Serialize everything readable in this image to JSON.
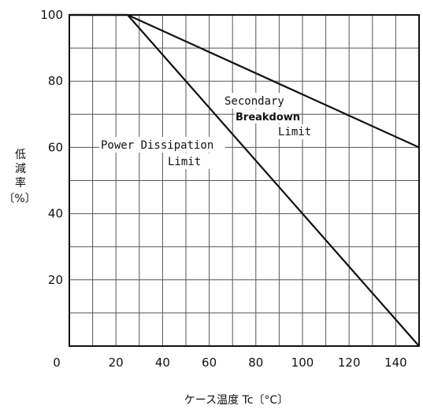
{
  "chart_data": {
    "type": "line",
    "xlabel": "ケース温度 Tc〔°C〕",
    "ylabel": [
      "低",
      "減",
      "率",
      "〔%〕"
    ],
    "xlim": [
      0,
      150
    ],
    "ylim": [
      0,
      100
    ],
    "x_ticks": [
      "0",
      "20",
      "40",
      "60",
      "80",
      "100",
      "120",
      "140"
    ],
    "y_ticks": [
      "20",
      "40",
      "60",
      "80",
      "100"
    ],
    "grid": true,
    "series": [
      {
        "name": "Power Dissipation Limit",
        "x": [
          0,
          25,
          150
        ],
        "y": [
          100,
          100,
          0
        ]
      },
      {
        "name": "Secondary Breakdown Limit",
        "x": [
          0,
          25,
          150
        ],
        "y": [
          100,
          100,
          60
        ]
      }
    ],
    "annotations": [
      {
        "lines": [
          "Power Dissipation",
          "Limit"
        ]
      },
      {
        "lines": [
          "Secondary",
          "Breakdown",
          "Limit"
        ]
      }
    ]
  }
}
